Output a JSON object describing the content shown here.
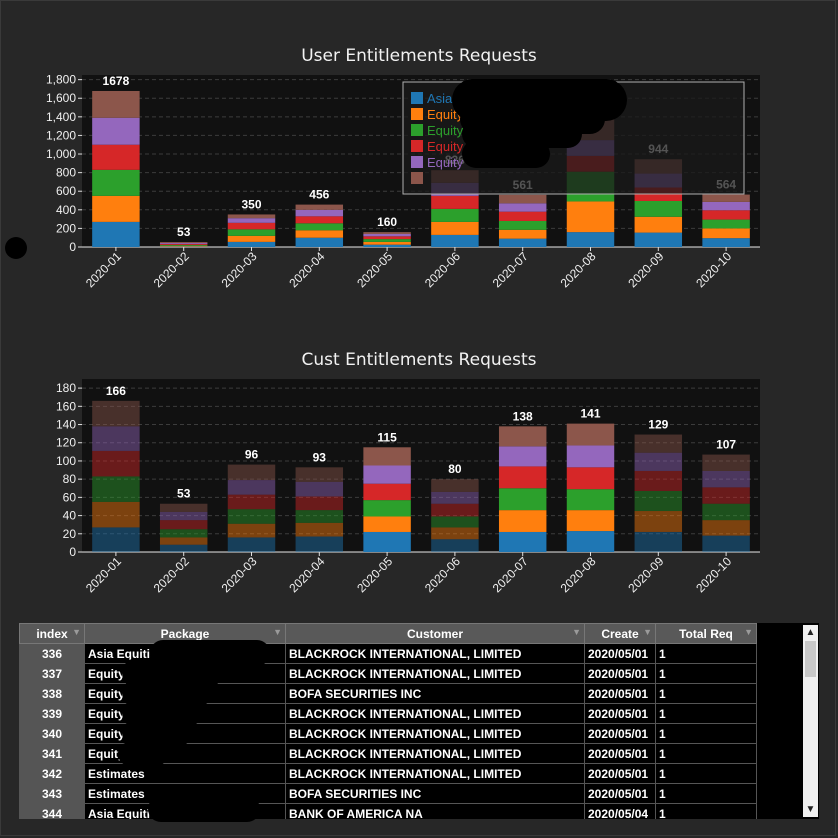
{
  "colors": {
    "series": [
      "#1f77b4",
      "#ff7f0e",
      "#2ca02c",
      "#d62728",
      "#9467bd",
      "#8c564b"
    ],
    "background": "#272727",
    "plot_bg": "#111111"
  },
  "charts": {
    "user": {
      "title": "User Entitlements Requests"
    },
    "cust": {
      "title": "Cust Entitlements Requests"
    }
  },
  "chart_data": [
    {
      "type": "bar",
      "stacked": true,
      "title": "User Entitlements Requests",
      "categories": [
        "2020-01",
        "2020-02",
        "2020-03",
        "2020-04",
        "2020-05",
        "2020-06",
        "2020-07",
        "2020-08",
        "2020-09",
        "2020-10"
      ],
      "totals": [
        1678,
        53,
        350,
        456,
        160,
        826,
        561,
        1380,
        944,
        564
      ],
      "total_labels": [
        "1678",
        "53",
        "350",
        "456",
        "160",
        "826",
        "561",
        "",
        "944",
        "564"
      ],
      "series": [
        {
          "name": "Asia",
          "values": [
            270,
            5,
            55,
            100,
            25,
            130,
            90,
            160,
            155,
            95
          ]
        },
        {
          "name": "Equity",
          "values": [
            280,
            8,
            65,
            80,
            30,
            140,
            95,
            330,
            170,
            105
          ]
        },
        {
          "name": "Equity",
          "values": [
            280,
            10,
            70,
            75,
            30,
            140,
            95,
            320,
            170,
            95
          ]
        },
        {
          "name": "Equity",
          "values": [
            270,
            10,
            70,
            75,
            30,
            140,
            100,
            170,
            145,
            100
          ]
        },
        {
          "name": "Equity",
          "values": [
            290,
            10,
            50,
            70,
            25,
            140,
            90,
            170,
            150,
            90
          ]
        },
        {
          "name": "",
          "values": [
            288,
            10,
            40,
            56,
            20,
            136,
            91,
            230,
            154,
            79
          ]
        }
      ],
      "legend_labels": [
        "Asia",
        "Equity",
        "Equity",
        "Equity",
        "Equity",
        ""
      ],
      "ylim": [
        0,
        1850
      ],
      "yticks": [
        0,
        200,
        400,
        600,
        800,
        1000,
        1200,
        1400,
        1600,
        1800
      ],
      "ytick_labels": [
        "0",
        "200",
        "400",
        "600",
        "800",
        "1,000",
        "1,200",
        "1,400",
        "1,600",
        "1,800"
      ],
      "grid": true,
      "legend_position": "top-right"
    },
    {
      "type": "bar",
      "stacked": true,
      "title": "Cust Entitlements Requests",
      "categories": [
        "2020-01",
        "2020-02",
        "2020-03",
        "2020-04",
        "2020-05",
        "2020-06",
        "2020-07",
        "2020-08",
        "2020-09",
        "2020-10"
      ],
      "totals": [
        166,
        53,
        96,
        93,
        115,
        80,
        138,
        141,
        129,
        107
      ],
      "total_labels": [
        "166",
        "53",
        "96",
        "93",
        "115",
        "80",
        "138",
        "141",
        "129",
        "107"
      ],
      "series": [
        {
          "name": "",
          "values": [
            27,
            8,
            16,
            17,
            22,
            14,
            22,
            23,
            22,
            18
          ]
        },
        {
          "name": "",
          "values": [
            28,
            8,
            15,
            15,
            17,
            13,
            24,
            23,
            23,
            17
          ]
        },
        {
          "name": "",
          "values": [
            28,
            9,
            16,
            14,
            18,
            12,
            24,
            23,
            22,
            18
          ]
        },
        {
          "name": "",
          "values": [
            28,
            10,
            16,
            15,
            18,
            14,
            24,
            24,
            22,
            18
          ]
        },
        {
          "name": "",
          "values": [
            27,
            9,
            16,
            16,
            20,
            13,
            22,
            24,
            20,
            18
          ]
        },
        {
          "name": "",
          "values": [
            28,
            9,
            17,
            16,
            20,
            14,
            22,
            24,
            20,
            18
          ]
        }
      ],
      "ylim": [
        0,
        190
      ],
      "yticks": [
        0,
        20,
        40,
        60,
        80,
        100,
        120,
        140,
        160,
        180
      ],
      "ytick_labels": [
        "0",
        "20",
        "40",
        "60",
        "80",
        "100",
        "120",
        "140",
        "160",
        "180"
      ],
      "grid": true
    }
  ],
  "table": {
    "columns": [
      "index",
      "Package",
      "Customer",
      "Create",
      "Total Req"
    ],
    "rows": [
      {
        "index": "336",
        "package": "Asia Equities",
        "customer": "BLACKROCK INTERNATIONAL, LIMITED",
        "create": "2020/05/01",
        "total": "1"
      },
      {
        "index": "337",
        "package": "Equity",
        "customer": "BLACKROCK INTERNATIONAL, LIMITED",
        "create": "2020/05/01",
        "total": "1"
      },
      {
        "index": "338",
        "package": "Equity |",
        "customer": "BOFA SECURITIES INC",
        "create": "2020/05/01",
        "total": "1"
      },
      {
        "index": "339",
        "package": "Equity",
        "customer": "BLACKROCK INTERNATIONAL, LIMITED",
        "create": "2020/05/01",
        "total": "1"
      },
      {
        "index": "340",
        "package": "Equity",
        "customer": "BLACKROCK INTERNATIONAL, LIMITED",
        "create": "2020/05/01",
        "total": "1"
      },
      {
        "index": "341",
        "package": "Equity |",
        "customer": "BLACKROCK INTERNATIONAL, LIMITED",
        "create": "2020/05/01",
        "total": "1"
      },
      {
        "index": "342",
        "package": "Estimates",
        "customer": "BLACKROCK INTERNATIONAL, LIMITED",
        "create": "2020/05/01",
        "total": "1"
      },
      {
        "index": "343",
        "package": "Estimates",
        "customer": "BOFA SECURITIES INC",
        "create": "2020/05/01",
        "total": "1"
      },
      {
        "index": "344",
        "package": "Asia Equities",
        "customer": "BANK OF AMERICA NA",
        "create": "2020/05/04",
        "total": "1"
      }
    ]
  },
  "icons": {
    "filter": "filter-icon",
    "scroll_up": "arrow-up-icon",
    "scroll_down": "arrow-down-icon"
  }
}
